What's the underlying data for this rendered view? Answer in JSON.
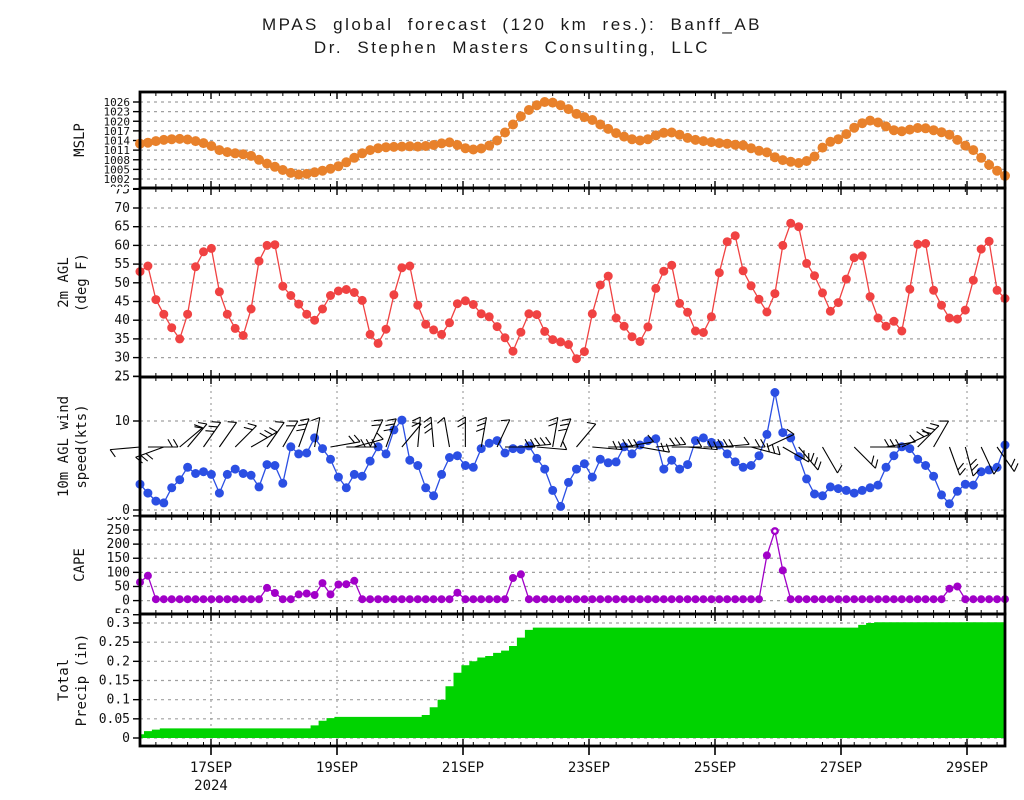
{
  "title": {
    "line1": "MPAS global forecast (120 km res.): Banff_AB",
    "line2": "Dr. Stephen Masters Consulting, LLC"
  },
  "colors": {
    "mslp": "#E8812B",
    "temperature": "#F04242",
    "wind": "#2B4FE3",
    "cape": "#A100C8",
    "precip": "#00D300",
    "grid": "#A0A0A0",
    "axis": "#000000"
  },
  "chart_data": {
    "type": "line",
    "subtype": "meteogram-stacked-panels",
    "station": "Banff_AB",
    "x_axis": {
      "tick_labels": [
        "17SEP",
        "19SEP",
        "21SEP",
        "23SEP",
        "25SEP",
        "27SEP",
        "29SEP"
      ],
      "year_label": "2024",
      "interval_hours": 3,
      "n_points": 110
    },
    "panels": [
      {
        "id": "mslp",
        "ylabel_lines": [
          "MSLP"
        ],
        "color": "#E8812B",
        "yticks": [
          [
            "1026",
            1026
          ],
          [
            "1023",
            1023
          ],
          [
            "1020",
            1020
          ],
          [
            "1017",
            1017
          ],
          [
            "1014",
            1014
          ],
          [
            "1011",
            1011
          ],
          [
            "1008",
            1008
          ],
          [
            "1005",
            1005
          ],
          [
            "1002",
            1002
          ]
        ],
        "cut_ticks": [
          [
            "999",
            999
          ]
        ],
        "ylim": [
          1001,
          1027
        ],
        "grid": "horizontal",
        "values": [
          1013,
          1013.3,
          1013.8,
          1014.2,
          1014.4,
          1014.5,
          1014.3,
          1013.8,
          1013.2,
          1012.3,
          1011,
          1010.4,
          1010,
          1009.7,
          1009.2,
          1008,
          1006.8,
          1005.8,
          1004.8,
          1003.9,
          1003.4,
          1003.6,
          1004.1,
          1004.6,
          1005.2,
          1006,
          1007.2,
          1008.6,
          1010,
          1011,
          1011.6,
          1011.9,
          1012,
          1012.1,
          1012.2,
          1012.1,
          1012.3,
          1012.6,
          1013.1,
          1013.4,
          1012.6,
          1011.6,
          1011.2,
          1011.5,
          1012.4,
          1014,
          1016.5,
          1019,
          1021.5,
          1023.5,
          1025,
          1026,
          1025.8,
          1025,
          1023.8,
          1022.3,
          1021.3,
          1020.4,
          1019,
          1017.6,
          1016.3,
          1015.2,
          1014.4,
          1014,
          1014.4,
          1015.6,
          1016.4,
          1016.5,
          1015.8,
          1014.8,
          1014.2,
          1013.8,
          1013.5,
          1013.2,
          1013,
          1012.7,
          1012.5,
          1011.6,
          1010.8,
          1010.3,
          1008.8,
          1007.9,
          1007.4,
          1007,
          1007.6,
          1009,
          1011.8,
          1013.6,
          1014.4,
          1016,
          1018,
          1019.4,
          1020.2,
          1019.6,
          1018.4,
          1017.2,
          1016.9,
          1017.4,
          1017.9,
          1017.8,
          1017.2,
          1016.6,
          1015.8,
          1014.2,
          1012.4,
          1011,
          1008.6,
          1006.4,
          1004.6,
          1003
        ]
      },
      {
        "id": "temperature-2m",
        "ylabel_lines": [
          "2m AGL",
          "(deg F)"
        ],
        "color": "#F04242",
        "yticks": [
          [
            "70",
            70
          ],
          [
            "65",
            65
          ],
          [
            "60",
            60
          ],
          [
            "55",
            55
          ],
          [
            "50",
            50
          ],
          [
            "45",
            45
          ],
          [
            "40",
            40
          ],
          [
            "35",
            35
          ],
          [
            "30",
            30
          ],
          [
            "25",
            25
          ]
        ],
        "cut_ticks": [
          [
            "75",
            75
          ]
        ],
        "ylim": [
          24,
          76
        ],
        "grid": "horizontal",
        "values": [
          53,
          54.5,
          45.5,
          41.6,
          38,
          35,
          41.6,
          54.3,
          58.3,
          59.2,
          47.6,
          41.6,
          37.8,
          35.9,
          43,
          55.8,
          60,
          60.2,
          49.1,
          46.6,
          44.3,
          41.6,
          40,
          43,
          46.6,
          47.8,
          48.2,
          47.4,
          45.3,
          36.2,
          33.8,
          37.6,
          46.8,
          54,
          54.5,
          44,
          38.9,
          37.4,
          36.2,
          39.3,
          44.4,
          45.2,
          44.2,
          41.7,
          40.9,
          38.3,
          35.3,
          31.7,
          36.8,
          41.7,
          41.5,
          37,
          34.8,
          34.2,
          33.5,
          29.7,
          31.6,
          41.7,
          49.4,
          51.8,
          40.6,
          38.4,
          35.6,
          34.3,
          38.2,
          48.5,
          53.1,
          54.7,
          44.5,
          42.1,
          37.1,
          36.7,
          40.9,
          52.7,
          61,
          62.6,
          53.2,
          49.2,
          45.6,
          42.2,
          47.1,
          60,
          65.9,
          65,
          55.2,
          51.9,
          47.3,
          42.4,
          44.7,
          51,
          56.7,
          57.2,
          46.3,
          40.6,
          38.4,
          39.7,
          37.1,
          48.3,
          60.3,
          60.5,
          48,
          44,
          40.6,
          40.3,
          42.7,
          50.7,
          59,
          61.1,
          48,
          45.8
        ]
      },
      {
        "id": "wind-10m",
        "ylabel_lines": [
          "10m AGL wind",
          "speed(kts)"
        ],
        "color": "#2B4FE3",
        "yticks": [
          [
            "10",
            10
          ],
          [
            "0",
            0
          ]
        ],
        "cut_ticks": [
          [
            "15",
            15
          ]
        ],
        "ylim": [
          -0.7,
          15.6
        ],
        "grid": "horizontal+vertical",
        "values": [
          2.9,
          1.9,
          1.0,
          0.8,
          2.5,
          3.4,
          4.8,
          4.1,
          4.3,
          4.0,
          1.9,
          4.0,
          4.6,
          4.1,
          3.9,
          2.6,
          5.1,
          5.0,
          3.0,
          7.1,
          6.3,
          6.4,
          8.1,
          6.9,
          5.7,
          3.7,
          2.5,
          4.0,
          3.8,
          5.5,
          7.1,
          6.3,
          9.0,
          10.1,
          5.6,
          5.0,
          2.5,
          1.6,
          4.0,
          5.9,
          6.1,
          5.0,
          4.8,
          6.9,
          7.5,
          7.8,
          6.4,
          6.9,
          6.8,
          7.2,
          5.8,
          4.6,
          2.2,
          0.4,
          3.1,
          4.6,
          5.2,
          3.7,
          5.7,
          5.3,
          5.4,
          7.1,
          6.3,
          7.3,
          7.8,
          8.0,
          4.6,
          5.6,
          4.6,
          5.1,
          7.8,
          8.1,
          7.6,
          7.3,
          6.3,
          5.4,
          4.8,
          5.0,
          6.1,
          8.5,
          13.2,
          8.7,
          8.1,
          6.0,
          3.5,
          1.8,
          1.6,
          2.6,
          2.4,
          2.2,
          1.9,
          2.2,
          2.5,
          2.8,
          4.8,
          6.1,
          7.1,
          6.9,
          5.7,
          5.0,
          3.8,
          1.7,
          0.7,
          2.1,
          2.9,
          2.8,
          4.3,
          4.5,
          4.8,
          7.3
        ]
      },
      {
        "id": "cape",
        "ylabel_lines": [
          "CAPE"
        ],
        "color": "#A100C8",
        "yticks": [
          [
            "250",
            250
          ],
          [
            "200",
            200
          ],
          [
            "150",
            150
          ],
          [
            "100",
            100
          ],
          [
            "50",
            50
          ],
          [
            "0",
            0
          ]
        ],
        "cut_ticks": [
          [
            "300",
            300
          ],
          [
            "-50",
            -50
          ]
        ],
        "ylim": [
          -48,
          297
        ],
        "grid": "horizontal+vertical",
        "values": [
          65,
          88,
          5,
          5,
          5,
          5,
          5,
          5,
          5,
          5,
          5,
          5,
          5,
          5,
          5,
          5,
          45,
          27,
          5,
          5,
          22,
          25,
          20,
          62,
          22,
          57,
          58,
          70,
          5,
          5,
          5,
          5,
          5,
          5,
          5,
          5,
          5,
          5,
          5,
          5,
          28,
          5,
          5,
          5,
          5,
          5,
          5,
          80,
          93,
          5,
          5,
          5,
          5,
          5,
          5,
          5,
          5,
          5,
          5,
          5,
          5,
          5,
          5,
          5,
          5,
          5,
          5,
          5,
          5,
          5,
          5,
          5,
          5,
          5,
          5,
          5,
          5,
          5,
          5,
          160,
          246,
          107,
          5,
          5,
          5,
          5,
          5,
          5,
          5,
          5,
          5,
          5,
          5,
          5,
          5,
          5,
          5,
          5,
          5,
          5,
          5,
          5,
          42,
          50,
          5,
          5,
          5,
          5,
          5,
          5
        ]
      },
      {
        "id": "total-precip",
        "ylabel_lines": [
          "Total",
          "Precip (in)"
        ],
        "color": "#00D300",
        "yticks": [
          [
            "0.3",
            0.3
          ],
          [
            "0.25",
            0.25
          ],
          [
            "0.2",
            0.2
          ],
          [
            "0.15",
            0.15
          ],
          [
            "0.1",
            0.1
          ],
          [
            "0.05",
            0.05
          ],
          [
            "0",
            0
          ]
        ],
        "cut_ticks": [],
        "ylim": [
          0,
          0.33
        ],
        "grid": "horizontal+vertical",
        "fill": true,
        "values": [
          0.01,
          0.018,
          0.022,
          0.025,
          0.025,
          0.025,
          0.025,
          0.025,
          0.025,
          0.025,
          0.025,
          0.025,
          0.025,
          0.025,
          0.025,
          0.025,
          0.025,
          0.025,
          0.025,
          0.025,
          0.025,
          0.025,
          0.033,
          0.045,
          0.052,
          0.055,
          0.055,
          0.055,
          0.055,
          0.055,
          0.055,
          0.055,
          0.055,
          0.055,
          0.055,
          0.055,
          0.06,
          0.08,
          0.1,
          0.135,
          0.17,
          0.19,
          0.2,
          0.21,
          0.214,
          0.222,
          0.228,
          0.24,
          0.262,
          0.282,
          0.288,
          0.288,
          0.288,
          0.288,
          0.288,
          0.288,
          0.288,
          0.288,
          0.288,
          0.288,
          0.288,
          0.288,
          0.288,
          0.288,
          0.288,
          0.288,
          0.288,
          0.288,
          0.288,
          0.288,
          0.288,
          0.288,
          0.288,
          0.288,
          0.288,
          0.288,
          0.288,
          0.288,
          0.288,
          0.288,
          0.288,
          0.288,
          0.288,
          0.288,
          0.288,
          0.288,
          0.288,
          0.288,
          0.288,
          0.288,
          0.288,
          0.295,
          0.3,
          0.302,
          0.302,
          0.302,
          0.302,
          0.302,
          0.302,
          0.302,
          0.302,
          0.302,
          0.302,
          0.302,
          0.302,
          0.302,
          0.302,
          0.302,
          0.302,
          0.302
        ]
      }
    ],
    "wind_barbs": [
      [
        0,
        185
      ],
      [
        1,
        0
      ],
      [
        3,
        200
      ],
      [
        5,
        40
      ],
      [
        6,
        50
      ],
      [
        8,
        55
      ],
      [
        10,
        55
      ],
      [
        12,
        45
      ],
      [
        14,
        30
      ],
      [
        16,
        55
      ],
      [
        18,
        60
      ],
      [
        20,
        70
      ],
      [
        22,
        80
      ],
      [
        24,
        10
      ],
      [
        26,
        0
      ],
      [
        27,
        15
      ],
      [
        29,
        65
      ],
      [
        31,
        70
      ],
      [
        33,
        50
      ],
      [
        35,
        85
      ],
      [
        37,
        95
      ],
      [
        39,
        100
      ],
      [
        41,
        90
      ],
      [
        43,
        80
      ],
      [
        45,
        65
      ],
      [
        46,
        0
      ],
      [
        48,
        5
      ],
      [
        50,
        -5
      ],
      [
        52,
        80
      ],
      [
        53,
        70
      ],
      [
        55,
        50
      ],
      [
        57,
        -5
      ],
      [
        59,
        0
      ],
      [
        61,
        10
      ],
      [
        63,
        -10
      ],
      [
        65,
        5
      ],
      [
        67,
        0
      ],
      [
        69,
        -5
      ],
      [
        71,
        0
      ],
      [
        73,
        5
      ],
      [
        75,
        0
      ],
      [
        77,
        -15
      ],
      [
        79,
        25
      ],
      [
        81,
        -30
      ],
      [
        83,
        -50
      ],
      [
        86,
        -60
      ],
      [
        90,
        -45
      ],
      [
        92,
        0
      ],
      [
        94,
        10
      ],
      [
        96,
        25
      ],
      [
        98,
        45
      ],
      [
        100,
        60
      ],
      [
        102,
        -70
      ],
      [
        104,
        -75
      ],
      [
        106,
        -65
      ],
      [
        108,
        -55
      ]
    ]
  }
}
